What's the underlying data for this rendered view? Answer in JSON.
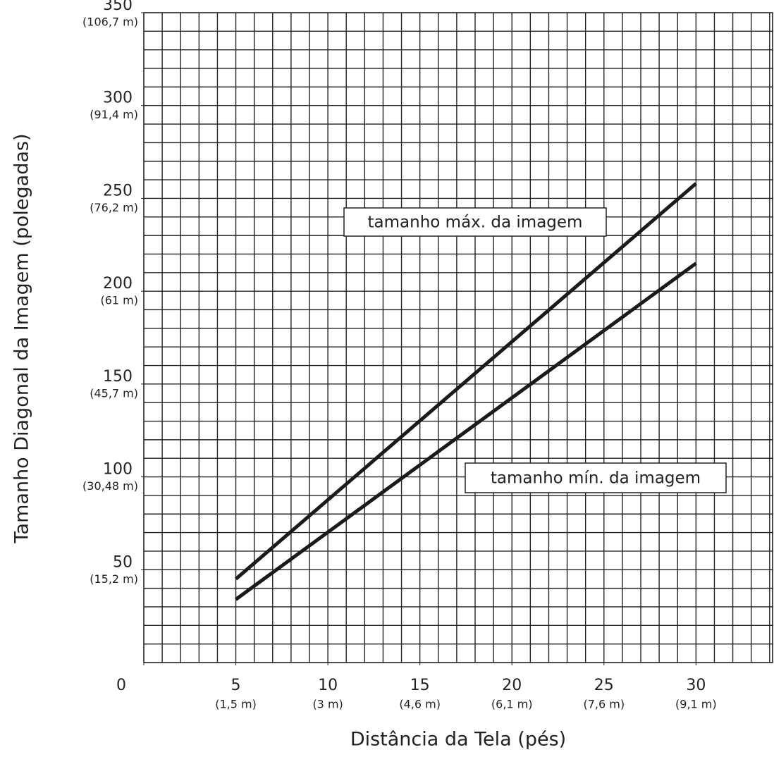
{
  "chart_data": {
    "type": "line",
    "x_label": "Distância da Tela (pés)",
    "y_label": "Tamanho Diagonal da Imagem (polegadas)",
    "xlim": [
      0,
      34.2
    ],
    "ylim": [
      0,
      350
    ],
    "xticks": [
      0,
      5,
      10,
      15,
      20,
      25,
      30
    ],
    "xtick_metric": [
      null,
      "(1,5 m)",
      "(3 m)",
      "(4,6 m)",
      "(6,1 m)",
      "(7,6 m)",
      "(9,1 m)"
    ],
    "yticks": [
      50,
      100,
      150,
      200,
      250,
      300,
      350
    ],
    "ytick_metric": [
      "(15,2 m)",
      "(30,48 m)",
      "(45,7 m)",
      "(61 m)",
      "(76,2 m)",
      "(91,4 m)",
      "(106,7 m)"
    ],
    "minor_grid": {
      "x": 1,
      "y": 10
    },
    "x": [
      5,
      30
    ],
    "series": [
      {
        "name": "tamanho máx. da imagem",
        "color": "#1a1a1a",
        "values": [
          45,
          258
        ]
      },
      {
        "name": "tamanho mín. da imagem",
        "color": "#1a1a1a",
        "values": [
          34,
          215
        ]
      }
    ]
  }
}
